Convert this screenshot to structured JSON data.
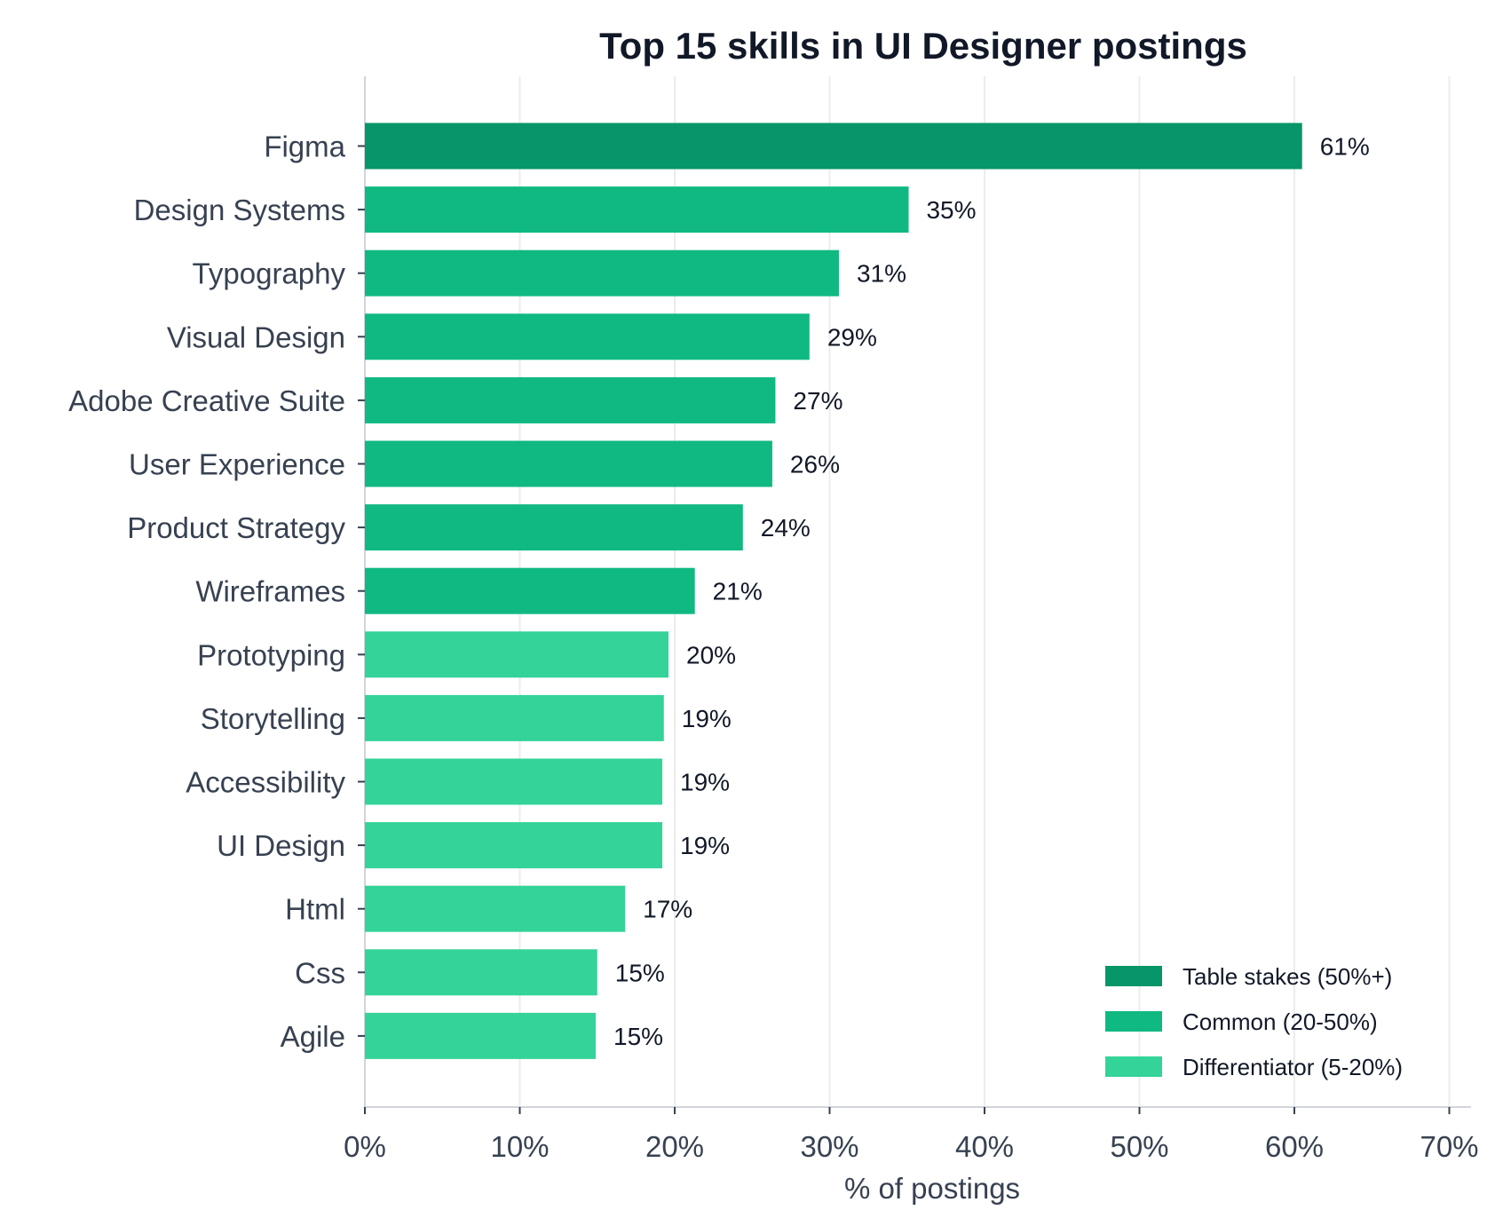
{
  "chart_data": {
    "type": "bar",
    "orientation": "horizontal",
    "title": "Top 15 skills in UI Designer postings",
    "xlabel": "% of postings",
    "ylabel": "",
    "xlim": [
      0,
      70
    ],
    "x_ticks": [
      0,
      10,
      20,
      30,
      40,
      50,
      60,
      70
    ],
    "x_tick_labels": [
      "0%",
      "10%",
      "20%",
      "30%",
      "40%",
      "50%",
      "60%",
      "70%"
    ],
    "grid": "vertical",
    "categories": [
      "Figma",
      "Design Systems",
      "Typography",
      "Visual Design",
      "Adobe Creative Suite",
      "User Experience",
      "Product Strategy",
      "Wireframes",
      "Prototyping",
      "Storytelling",
      "Accessibility",
      "UI Design",
      "Html",
      "Css",
      "Agile"
    ],
    "values": [
      60.5,
      35.1,
      30.6,
      28.7,
      26.5,
      26.3,
      24.4,
      21.3,
      19.6,
      19.3,
      19.2,
      19.2,
      16.8,
      15.0,
      14.9
    ],
    "value_labels": [
      "61%",
      "35%",
      "31%",
      "29%",
      "27%",
      "26%",
      "24%",
      "21%",
      "20%",
      "19%",
      "19%",
      "19%",
      "17%",
      "15%",
      "15%"
    ],
    "tiers": [
      "table",
      "common",
      "common",
      "common",
      "common",
      "common",
      "common",
      "common",
      "diff",
      "diff",
      "diff",
      "diff",
      "diff",
      "diff",
      "diff"
    ],
    "legend": {
      "position": "bottom-right",
      "entries": [
        {
          "key": "table",
          "label": "Table stakes (50%+)",
          "color": "#069669"
        },
        {
          "key": "common",
          "label": "Common (20-50%)",
          "color": "#10b981"
        },
        {
          "key": "diff",
          "label": "Differentiator (5-20%)",
          "color": "#34d399"
        }
      ]
    }
  }
}
